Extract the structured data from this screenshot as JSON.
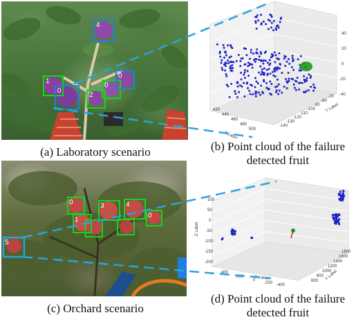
{
  "captions": {
    "a": "(a) Laboratory scenario",
    "b_line1": "(b) Point cloud of the failure",
    "b_line2": "detected fruit",
    "c": "(c) Orchard scenario",
    "d_line1": "(d) Point cloud of the failure",
    "d_line2": "detected fruit"
  },
  "lab_detections": {
    "box_labels": [
      "4",
      "1",
      "0",
      "2",
      "0",
      "0"
    ]
  },
  "orchard_detections": {
    "box_labels": [
      "0",
      "1",
      "3",
      "4",
      "0",
      "5"
    ]
  },
  "plot_b": {
    "x_axis_label": "X Label",
    "y_axis_label": "Y Label",
    "x_ticks": [
      "420",
      "440",
      "460",
      "480",
      "500"
    ],
    "y_ticks": [
      "-140",
      "-130",
      "-120",
      "-110",
      "-100",
      "-90",
      "-80",
      "-70"
    ],
    "z_ticks": [
      "40",
      "20",
      "0",
      "-20",
      "-40"
    ]
  },
  "plot_d": {
    "x_axis_label": "X Label",
    "y_axis_label": "Y Label",
    "z_axis_label": "Z Label",
    "x_ticks": [
      "400",
      "200",
      "0",
      "-200",
      "-400"
    ],
    "y_ticks": [
      "600",
      "800",
      "1000",
      "1200",
      "1400",
      "1600",
      "1800"
    ],
    "z_ticks": [
      "100",
      "50",
      "0",
      "-50",
      "-100",
      "-150",
      "-200"
    ]
  },
  "colors": {
    "detection_box": "#1fd01f",
    "failure_box": "#1e7fe0",
    "callout_line": "#2aa3df",
    "point_cloud": "#1f23c9",
    "highlight_point": "#1a9a1a"
  }
}
